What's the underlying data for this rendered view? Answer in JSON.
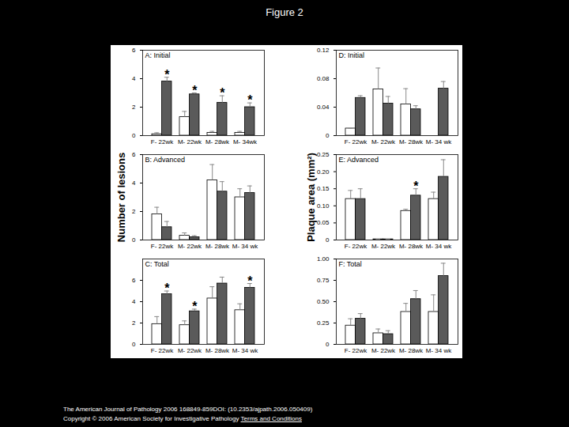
{
  "page": {
    "title": "Figure 2",
    "citation": "The American Journal of Pathology 2006 168849-859DOI: (10.2353/ajpath.2006.050409)",
    "copyright": "Copyright © 2006 American Society for Investigative Pathology",
    "link": "Terms and Conditions"
  },
  "chart_data": [
    {
      "type": "bar",
      "title": "A: Initial",
      "categories": [
        "F- 22wk",
        "M- 22wk",
        "M- 28wk",
        "M- 34wk"
      ],
      "series": [
        {
          "color": "#ffffff",
          "values": [
            0.1,
            1.3,
            0.2,
            0.2
          ],
          "errors": [
            0.1,
            0.4,
            0.1,
            0.1
          ]
        },
        {
          "color": "#5a5a5a",
          "values": [
            3.8,
            2.9,
            2.3,
            2.0
          ],
          "errors": [
            0.3,
            0.1,
            0.5,
            0.3
          ],
          "annotations": [
            "*",
            "*",
            "*",
            "*"
          ]
        }
      ],
      "ylim": [
        0,
        6
      ],
      "yticks": [
        0,
        2,
        4,
        6
      ]
    },
    {
      "type": "bar",
      "title": "B: Advanced",
      "ylabel": "Number of lesions",
      "categories": [
        "F- 22wk",
        "M- 22wk",
        "M- 28wk",
        "M- 34 wk"
      ],
      "series": [
        {
          "color": "#ffffff",
          "values": [
            1.8,
            0.3,
            4.2,
            3.0
          ],
          "errors": [
            0.5,
            0.2,
            1.1,
            0.6
          ]
        },
        {
          "color": "#5a5a5a",
          "values": [
            0.9,
            0.2,
            3.4,
            3.3
          ],
          "errors": [
            0.4,
            0.1,
            0.7,
            0.5
          ]
        }
      ],
      "ylim": [
        0,
        6
      ],
      "yticks": [
        0,
        2,
        4,
        6
      ]
    },
    {
      "type": "bar",
      "title": "C: Total",
      "categories": [
        "F- 22wk",
        "M- 22wk",
        "M- 28wk",
        "M- 34 wk"
      ],
      "series": [
        {
          "color": "#ffffff",
          "values": [
            1.9,
            1.8,
            4.3,
            3.2
          ],
          "errors": [
            0.7,
            0.4,
            1.1,
            0.6
          ]
        },
        {
          "color": "#5a5a5a",
          "values": [
            4.7,
            3.1,
            5.7,
            5.3
          ],
          "errors": [
            0.3,
            0.2,
            0.6,
            0.4
          ],
          "annotations": [
            "*",
            "*",
            null,
            "*"
          ]
        }
      ],
      "ylim": [
        0,
        8
      ],
      "yticks": [
        0,
        2,
        4,
        6
      ]
    },
    {
      "type": "bar",
      "title": "D: Initial",
      "categories": [
        "F- 22wk",
        "M- 22wk",
        "M- 28wk",
        "M- 34 wk"
      ],
      "series": [
        {
          "color": "#ffffff",
          "values": [
            0.01,
            0.065,
            0.044,
            0
          ],
          "errors": [
            0,
            0.03,
            0.022,
            0
          ]
        },
        {
          "color": "#5a5a5a",
          "values": [
            0.053,
            0.045,
            0.037,
            0.066
          ],
          "errors": [
            0.003,
            0.01,
            0.005,
            0.01
          ]
        }
      ],
      "ylim": [
        0,
        0.12
      ],
      "yticks": [
        0,
        0.04,
        0.08,
        0.12
      ]
    },
    {
      "type": "bar",
      "title": "E: Advanced",
      "ylabel": "Plaque area (mm²)",
      "categories": [
        "F- 22wk",
        "M- 22wk",
        "M- 28wk",
        "M- 34 wk"
      ],
      "series": [
        {
          "color": "#ffffff",
          "values": [
            0.12,
            0.002,
            0.085,
            0.12
          ],
          "errors": [
            0.025,
            0,
            0.005,
            0.02
          ]
        },
        {
          "color": "#5a5a5a",
          "values": [
            0.12,
            0.002,
            0.13,
            0.185
          ],
          "errors": [
            0.03,
            0,
            0.02,
            0.05
          ],
          "annotations": [
            null,
            null,
            "*",
            null
          ]
        }
      ],
      "ylim": [
        0,
        0.25
      ],
      "yticks": [
        0,
        0.05,
        {
          "value": 0.1,
          "label": "0.10"
        },
        0.15,
        {
          "value": 0.2,
          "label": "0.20"
        },
        0.25
      ]
    },
    {
      "type": "bar",
      "title": "F: Total",
      "categories": [
        "F- 22wk",
        "M- 22wk",
        "M- 28wk",
        "M- 34 wk"
      ],
      "series": [
        {
          "color": "#ffffff",
          "values": [
            0.22,
            0.13,
            0.38,
            0.38
          ],
          "errors": [
            0.08,
            0.05,
            0.1,
            0.2
          ]
        },
        {
          "color": "#5a5a5a",
          "values": [
            0.3,
            0.12,
            0.53,
            0.8
          ],
          "errors": [
            0.06,
            0.04,
            0.1,
            0.15
          ]
        }
      ],
      "ylim": [
        0,
        1
      ],
      "yticks": [
        0,
        {
          "value": 0.25,
          "label": "0.25"
        },
        {
          "value": 0.5,
          "label": "0.50"
        },
        {
          "value": 0.75,
          "label": "0.75"
        },
        {
          "value": 1,
          "label": "1.00"
        }
      ]
    }
  ]
}
